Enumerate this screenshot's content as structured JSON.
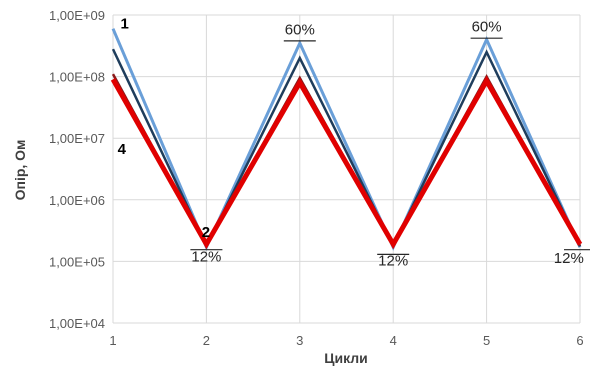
{
  "chart_data": {
    "type": "line",
    "xlabel": "Цикли",
    "ylabel": "Опір, Ом",
    "x": [
      1,
      2,
      3,
      4,
      5,
      6
    ],
    "xlim": [
      1,
      6
    ],
    "ylim": [
      10000,
      1000000000
    ],
    "yscale": "log",
    "grid": true,
    "y_tick_values": [
      10000,
      100000,
      1000000,
      10000000,
      100000000,
      1000000000
    ],
    "y_tick_labels": [
      "1,00E+04",
      "1,00E+05",
      "1,00E+06",
      "1,00E+07",
      "1,00E+08",
      "1,00E+09"
    ],
    "x_tick_labels": [
      "1",
      "2",
      "3",
      "4",
      "5",
      "6"
    ],
    "series": [
      {
        "name": "1",
        "color": "#6a9fd8",
        "width": 3,
        "values": [
          600000000,
          170000,
          350000000,
          170000,
          400000000,
          170000
        ]
      },
      {
        "name": "",
        "color": "#1f3d5c",
        "width": 2.5,
        "values": [
          280000000,
          175000,
          200000000,
          175000,
          250000000,
          175000
        ]
      },
      {
        "name": "",
        "color": "#8b1a1a",
        "width": 2.5,
        "values": [
          110000000,
          180000,
          95000000,
          180000,
          100000000,
          180000
        ]
      },
      {
        "name": "4",
        "color": "#e00000",
        "width": 5,
        "values": [
          90000000,
          190000,
          80000000,
          190000,
          85000000,
          190000
        ]
      }
    ],
    "series_labels": [
      {
        "text": "1",
        "x": 1.08,
        "y": 600000000
      },
      {
        "text": "4",
        "x": 1.05,
        "y": 5500000
      },
      {
        "text": "2",
        "x": 1.95,
        "y": 250000
      }
    ],
    "annotations": [
      {
        "text": "60%",
        "x": 3,
        "y": 480000000
      },
      {
        "text": "60%",
        "x": 5,
        "y": 540000000
      },
      {
        "text": "12%",
        "x": 2,
        "y": 100000
      },
      {
        "text": "12%",
        "x": 4,
        "y": 85000
      },
      {
        "text": "12%",
        "x": 5.88,
        "y": 95000
      }
    ],
    "marker_lines": [
      {
        "x": 2,
        "y": 155000
      },
      {
        "x": 3,
        "y": 380000000
      },
      {
        "x": 4,
        "y": 130000
      },
      {
        "x": 5,
        "y": 420000000
      },
      {
        "x": 6,
        "y": 155000
      }
    ]
  }
}
